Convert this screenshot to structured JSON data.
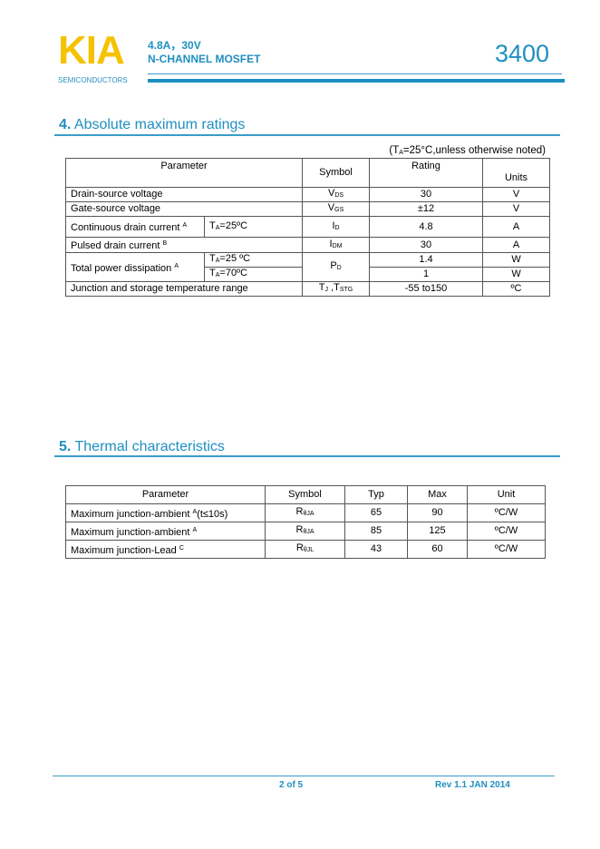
{
  "header": {
    "logo": "KIA",
    "logo_sub": "SEMICONDUCTORS",
    "spec_line1": "4.8A，30V",
    "spec_line2": "N-CHANNEL MOSFET",
    "part_number": "3400"
  },
  "section4": {
    "number": "4.",
    "title": "Absolute maximum ratings",
    "note_pre": "(T",
    "note_sub": "A",
    "note_post": "=25°C,unless otherwise noted)",
    "headers": {
      "parameter": "Parameter",
      "symbol": "Symbol",
      "rating": "Rating",
      "units": "Units"
    },
    "rows": [
      {
        "param": "Drain-source voltage",
        "sym": "V",
        "sym_sub": "DS",
        "rating": "30",
        "unit": "V"
      },
      {
        "param": "Gate-source voltage",
        "sym": "V",
        "sym_sub": "GS",
        "rating": "±12",
        "unit": "V"
      },
      {
        "param": "Continuous drain current",
        "sup": "A",
        "cond_pre": "T",
        "cond_sub": "A",
        "cond_post": "=25ºC",
        "sym": "I",
        "sym_sub": "D",
        "rating": "4.8",
        "unit": "A"
      },
      {
        "param": "Pulsed drain current",
        "sup": "B",
        "sym": "I",
        "sym_sub": "DM",
        "rating": "30",
        "unit": "A"
      },
      {
        "param": "Total power dissipation",
        "sup": "A",
        "sym": "P",
        "sym_sub": "D",
        "sub_rows": [
          {
            "cond_pre": "T",
            "cond_sub": "A",
            "cond_post": "=25 ºC",
            "rating": "1.4",
            "unit": "W"
          },
          {
            "cond_pre": "T",
            "cond_sub": "A",
            "cond_post": "=70ºC",
            "rating": "1",
            "unit": "W"
          }
        ]
      },
      {
        "param": "Junction and storage temperature range",
        "sym": "T",
        "sym_sub": "J",
        "sym_mid": " ,T",
        "sym_sub2": "STG",
        "rating": "-55 to150",
        "unit": "ºC"
      }
    ]
  },
  "section5": {
    "number": "5.",
    "title": "Thermal characteristics",
    "headers": {
      "parameter": "Parameter",
      "symbol": "Symbol",
      "typ": "Typ",
      "max": "Max",
      "unit": "Unit"
    },
    "rows": [
      {
        "param": "Maximum junction-ambient ",
        "sup": "A",
        "param_post": "(t≤10s)",
        "sym": "R",
        "sym_sub": "θJA",
        "typ": "65",
        "max": "90",
        "unit": "ºC/W"
      },
      {
        "param": "Maximum junction-ambient ",
        "sup": "A",
        "param_post": "",
        "sym": "R",
        "sym_sub": "θJA",
        "typ": "85",
        "max": "125",
        "unit": "ºC/W"
      },
      {
        "param": "Maximum junction-Lead ",
        "sup": "C",
        "param_post": "",
        "sym": "R",
        "sym_sub": "θJL",
        "typ": "43",
        "max": "60",
        "unit": "ºC/W"
      }
    ]
  },
  "footer": {
    "page": "2 of 5",
    "revision": "Rev 1.1 JAN 2014"
  }
}
